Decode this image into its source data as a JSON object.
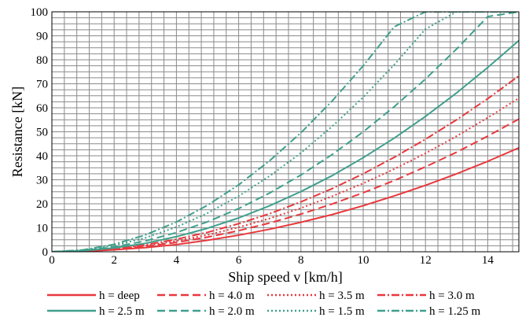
{
  "chart_data": {
    "type": "line",
    "title": "",
    "xlabel": "Ship speed v [km/h]",
    "ylabel": "Resistance [kN]",
    "xlim": [
      0,
      15
    ],
    "ylim": [
      0,
      100
    ],
    "x_ticks": [
      0,
      2,
      4,
      6,
      8,
      10,
      12,
      14
    ],
    "y_ticks": [
      0,
      10,
      20,
      30,
      40,
      50,
      60,
      70,
      80,
      90,
      100
    ],
    "grid": true,
    "legend_position": "bottom",
    "x": [
      0,
      1,
      2,
      3,
      4,
      5,
      6,
      7,
      8,
      9,
      10,
      11,
      12,
      13,
      14,
      15
    ],
    "series": [
      {
        "name": "h = deep",
        "color": "#e8383d",
        "dash": "solid",
        "values": [
          0,
          0.2,
          0.8,
          1.7,
          3,
          4.8,
          6.9,
          9.4,
          12.3,
          15.5,
          19.2,
          23.3,
          27.7,
          32.5,
          37.7,
          43.3
        ]
      },
      {
        "name": "h = 4.0 m",
        "color": "#e8383d",
        "dash": "dashed",
        "values": [
          0,
          0.25,
          1,
          2.2,
          3.9,
          6.1,
          8.8,
          12,
          15.7,
          19.9,
          24.6,
          29.7,
          35.4,
          41.5,
          48.2,
          55.3
        ]
      },
      {
        "name": "h = 3.5 m",
        "color": "#e8383d",
        "dash": "dotted",
        "values": [
          0,
          0.28,
          1.1,
          2.5,
          4.5,
          7,
          10.2,
          13.9,
          18.2,
          23.1,
          28.5,
          34.5,
          41,
          48.2,
          55.9,
          64
        ]
      },
      {
        "name": "h = 3.0 m",
        "color": "#e8383d",
        "dash": "dashdot",
        "values": [
          0,
          0.32,
          1.3,
          2.9,
          5.2,
          8.1,
          11.7,
          15.9,
          20.8,
          26.3,
          32.5,
          39.4,
          46.9,
          55,
          63.8,
          73.3
        ]
      },
      {
        "name": "h = 2.5 m",
        "color": "#3fa08c",
        "dash": "solid",
        "values": [
          0,
          0.4,
          1.6,
          3.5,
          6.3,
          9.8,
          14.1,
          19.2,
          25.1,
          31.7,
          39.2,
          47.4,
          56.4,
          66.2,
          76.8,
          88
        ]
      },
      {
        "name": "h = 2.0 m",
        "color": "#3fa08c",
        "dash": "dashed",
        "values": [
          0,
          0.5,
          2,
          4.5,
          8,
          12.5,
          18,
          24.5,
          32,
          40.5,
          50,
          60.5,
          72,
          84.5,
          98,
          100
        ]
      },
      {
        "name": "h = 1.5 m",
        "color": "#3fa08c",
        "dash": "dotted",
        "values": [
          0,
          0.65,
          2.6,
          5.8,
          10.3,
          16.1,
          23.2,
          31.6,
          41.2,
          52.2,
          64.4,
          78,
          92.8,
          100,
          100,
          100
        ]
      },
      {
        "name": "h = 1.25 m",
        "color": "#3fa08c",
        "dash": "dashdot",
        "values": [
          0,
          0.78,
          3.1,
          7,
          12.4,
          19.4,
          27.9,
          38,
          49.6,
          62.8,
          77.5,
          93.8,
          100,
          100,
          100,
          100
        ]
      }
    ]
  }
}
